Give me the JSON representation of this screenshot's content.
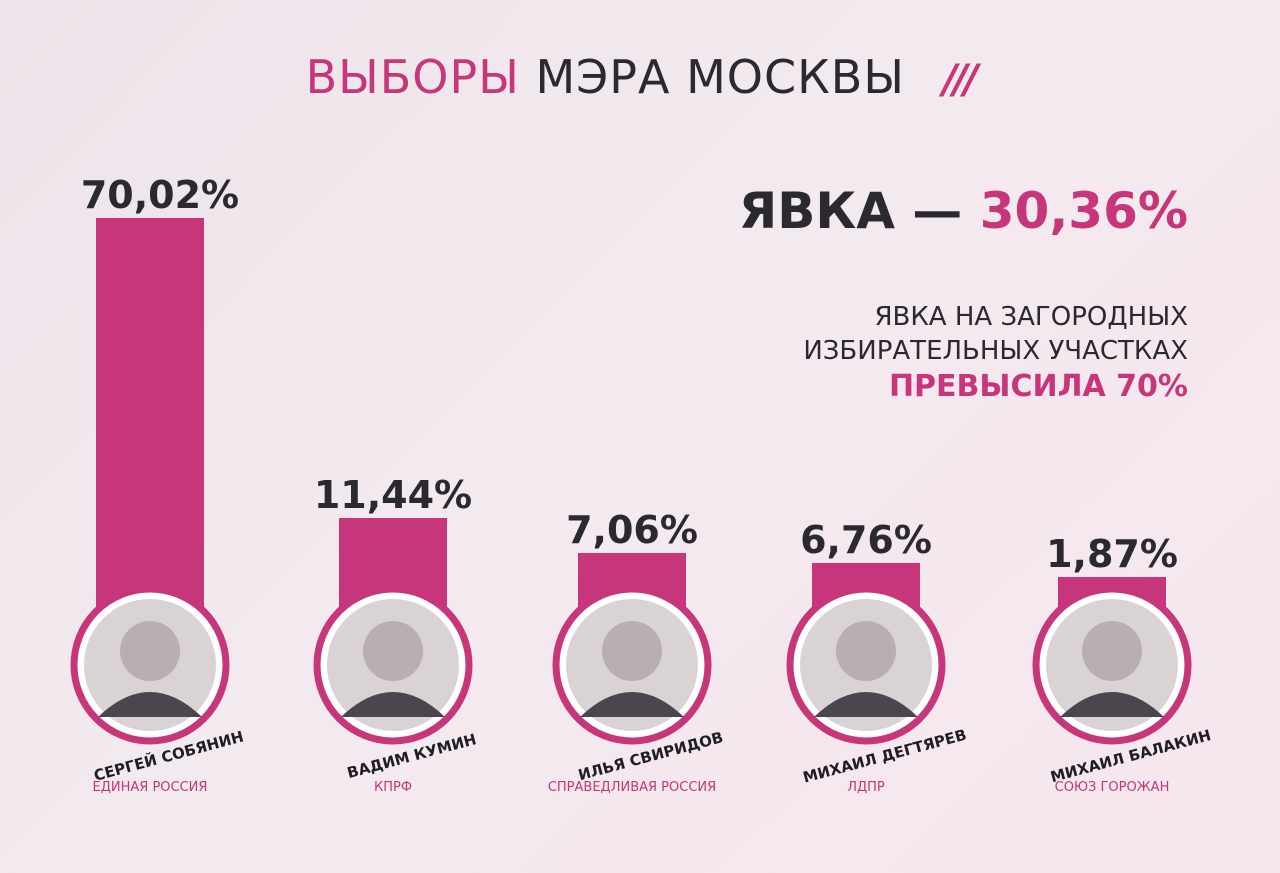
{
  "header": {
    "title_part1": "ВЫБОРЫ",
    "title_part2": "МЭРА МОСКВЫ",
    "slashes": "///"
  },
  "turnout": {
    "label": "ЯВКА —",
    "value": "30,36%"
  },
  "note": {
    "line1": "ЯВКА НА ЗАГОРОДНЫХ",
    "line2": "ИЗБИРАТЕЛЬНЫХ УЧАСТКАХ",
    "highlight": "ПРЕВЫСИЛА 70%"
  },
  "colors": {
    "accent": "#c7357a",
    "text": "#2a2a2e"
  },
  "chart_data": {
    "type": "bar",
    "categories": [
      "СЕРГЕЙ СОБЯНИН",
      "ВАДИМ КУМИН",
      "ИЛЬЯ СВИРИДОВ",
      "МИХАИЛ ДЕГТЯРЕВ",
      "МИХАИЛ БАЛАКИН"
    ],
    "parties": [
      "ЕДИНАЯ РОССИЯ",
      "КПРФ",
      "СПРАВЕДЛИВАЯ РОССИЯ",
      "ЛДПР",
      "СОЮЗ ГОРОЖАН"
    ],
    "values": [
      70.02,
      11.44,
      7.06,
      6.76,
      1.87
    ],
    "value_labels": [
      "70,02%",
      "11,44%",
      "7,06%",
      "6,76%",
      "1,87%"
    ],
    "ylim": [
      0,
      70.02
    ],
    "grid": false,
    "legend": "none"
  }
}
